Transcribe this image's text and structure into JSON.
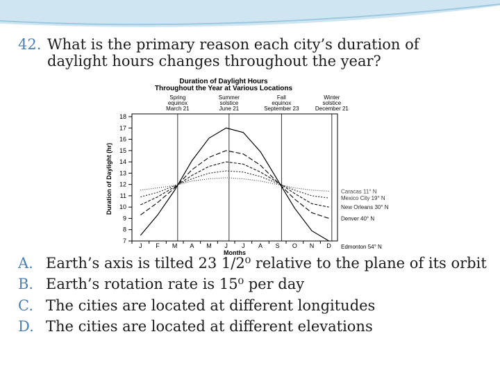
{
  "question": {
    "number": "42.",
    "text": "What is the primary reason each city’s duration of daylight hours changes throughout the year?"
  },
  "answers": [
    {
      "letter": "A.",
      "text": "Earth’s axis is tilted 23 1/2⁰ relative to the plane of its orbit"
    },
    {
      "letter": "B.",
      "text": "Earth’s rotation rate is 15⁰ per day"
    },
    {
      "letter": "C.",
      "text": "The cities are located at different longitudes"
    },
    {
      "letter": "D.",
      "text": "The cities are located at different elevations"
    }
  ],
  "chart_data": {
    "type": "line",
    "title": [
      "Duration of Daylight Hours",
      "Throughout the Year at Various Locations"
    ],
    "annotations": [
      [
        "Spring",
        "equinox",
        "March 21"
      ],
      [
        "Summer",
        "solstice",
        "June 21"
      ],
      [
        "Fall",
        "equinox",
        "September 23"
      ],
      [
        "Winter",
        "solstice",
        "December 21"
      ]
    ],
    "x_label": "Months",
    "y_label": "Duration of Daylight (hr)",
    "categories": [
      "J",
      "F",
      "M",
      "A",
      "M",
      "J",
      "J",
      "A",
      "S",
      "O",
      "N",
      "D"
    ],
    "ylim": [
      7,
      18
    ],
    "yticks": [
      7,
      8,
      9,
      10,
      11,
      12,
      13,
      14,
      15,
      16,
      17,
      18
    ],
    "series": [
      {
        "name": "Caracas 11° N",
        "color": "#444444",
        "dash": "1 2",
        "values": [
          11.5,
          11.7,
          11.9,
          12.3,
          12.5,
          12.6,
          12.5,
          12.3,
          12.0,
          11.7,
          11.5,
          11.4
        ]
      },
      {
        "name": "Mexico City 19° N",
        "color": "#333333",
        "dash": "2 2",
        "values": [
          10.9,
          11.3,
          11.9,
          12.5,
          13.0,
          13.2,
          13.1,
          12.7,
          12.1,
          11.5,
          11.0,
          10.8
        ]
      },
      {
        "name": "New Orleans 30° N",
        "color": "#222222",
        "dash": "4 2",
        "values": [
          10.2,
          10.9,
          11.8,
          12.8,
          13.6,
          14.0,
          13.8,
          13.1,
          12.2,
          11.2,
          10.3,
          10.0
        ]
      },
      {
        "name": "Denver 40° N",
        "color": "#111111",
        "dash": "7 3",
        "values": [
          9.3,
          10.4,
          11.7,
          13.3,
          14.4,
          15.0,
          14.7,
          13.7,
          12.2,
          10.7,
          9.5,
          9.0
        ]
      },
      {
        "name": "Edmonton 54° N",
        "color": "#000000",
        "dash": "",
        "values": [
          7.5,
          9.3,
          11.5,
          14.1,
          16.1,
          17.0,
          16.6,
          14.9,
          12.4,
          9.9,
          7.9,
          7.0
        ]
      }
    ]
  }
}
